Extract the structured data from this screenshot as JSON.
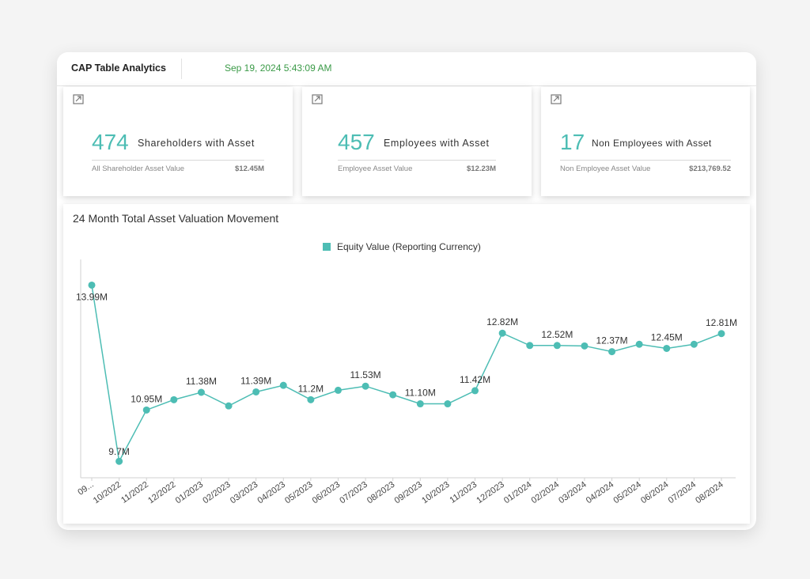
{
  "header": {
    "title": "CAP Table Analytics",
    "timestamp": "Sep 19, 2024 5:43:09 AM"
  },
  "cards": [
    {
      "count": "474",
      "label": "Shareholders with Asset",
      "sub_label": "All Shareholder Asset Value",
      "sub_value": "$12.45M"
    },
    {
      "count": "457",
      "label": "Employees with Asset",
      "sub_label": "Employee Asset Value",
      "sub_value": "$12.23M"
    },
    {
      "count": "17",
      "label": "Non Employees with Asset",
      "sub_label": "Non Employee Asset Value",
      "sub_value": "$213,769.52"
    }
  ],
  "colors": {
    "accent": "#4dbdb4",
    "timestamp": "#3a9a47"
  },
  "chart_data": {
    "type": "line",
    "title": "24 Month Total Asset Valuation Movement",
    "legend": {
      "position": "top-center",
      "entries": [
        "Equity Value (Reporting Currency)"
      ]
    },
    "categories": [
      "09...",
      "10/2022",
      "11/2022",
      "12/2022",
      "01/2023",
      "02/2023",
      "03/2023",
      "04/2023",
      "05/2023",
      "06/2023",
      "07/2023",
      "08/2023",
      "09/2023",
      "10/2023",
      "11/2023",
      "12/2023",
      "01/2024",
      "02/2024",
      "03/2024",
      "04/2024",
      "05/2024",
      "06/2024",
      "07/2024",
      "08/2024"
    ],
    "series": [
      {
        "name": "Equity Value (Reporting Currency)",
        "values": [
          13.99,
          9.7,
          10.95,
          11.2,
          11.38,
          11.05,
          11.39,
          11.55,
          11.2,
          11.43,
          11.53,
          11.32,
          11.1,
          11.1,
          11.42,
          12.82,
          12.52,
          12.52,
          12.51,
          12.37,
          12.55,
          12.45,
          12.55,
          12.81
        ],
        "labels": [
          "13.99M",
          "9.7M",
          "10.95M",
          "",
          "11.38M",
          "",
          "11.39M",
          "",
          "11.2M",
          "",
          "11.53M",
          "",
          "11.10M",
          "",
          "11.42M",
          "12.82M",
          "",
          "12.52M",
          "",
          "12.37M",
          "",
          "12.45M",
          "",
          "12.81M"
        ]
      }
    ],
    "ylim": [
      9.3,
      14.5
    ],
    "grid": false,
    "xlabel": "",
    "ylabel": ""
  }
}
